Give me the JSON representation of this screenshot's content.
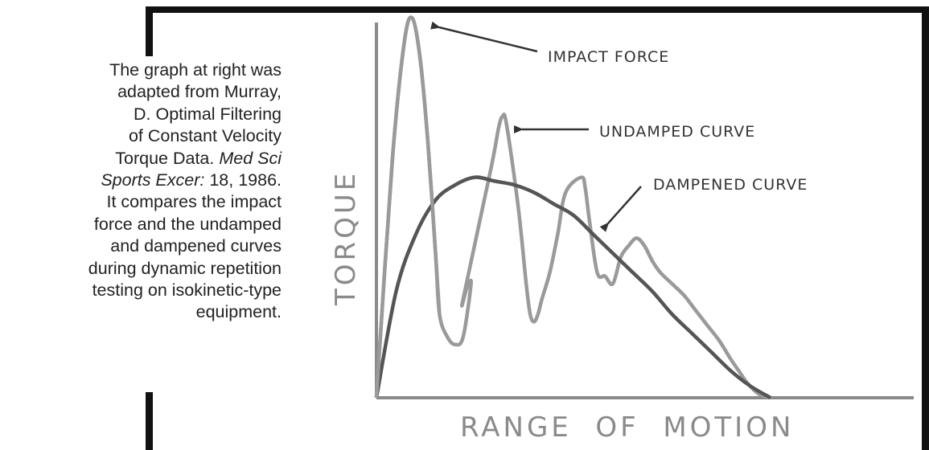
{
  "caption": {
    "line1": "The graph at right was",
    "line2": "adapted from Murray,",
    "line3": "D. Optimal Filtering",
    "line4": "of Constant Velocity",
    "line5_pre": "Torque Data. ",
    "line5_ital": "Med Sci",
    "line6_ital": "Sports Excer:",
    "line6_post": " 18, 1986.",
    "line7": "It compares the impact",
    "line8": "force and the undamped",
    "line9": "and dampened curves",
    "line10": "during dynamic repetition",
    "line11": "testing on isokinetic-type",
    "line12": "equipment."
  },
  "colors": {
    "frame": "#111111",
    "axis": "#8a8a8a",
    "undamped": "#9a9a9a",
    "dampened": "#555555",
    "arrow": "#333333"
  },
  "chart_data": {
    "type": "line",
    "title": "",
    "xlabel": "RANGE  OF  MOTION",
    "ylabel": "TORQUE",
    "xlim": [
      0,
      100
    ],
    "ylim": [
      0,
      100
    ],
    "ticks": "none",
    "grid": false,
    "series": [
      {
        "name": "UNDAMPED CURVE",
        "x": [
          0,
          4,
          7,
          9,
          11,
          13,
          15,
          16,
          18,
          20,
          22,
          24,
          23,
          22,
          29,
          31,
          32,
          33,
          36,
          38,
          39,
          40,
          41,
          42,
          44,
          46,
          48,
          52,
          53,
          54,
          56,
          58,
          60,
          62,
          64,
          66,
          68,
          70,
          72,
          75,
          78,
          81,
          84,
          87,
          90,
          92,
          94,
          97,
          100
        ],
        "y": [
          0,
          62,
          93,
          100,
          90,
          68,
          38,
          22,
          16,
          14,
          16,
          30,
          29,
          26,
          60,
          71,
          74,
          72,
          50,
          30,
          22,
          20,
          22,
          26,
          33,
          43,
          54,
          58,
          55,
          47,
          33,
          32,
          30,
          37,
          40,
          42,
          40,
          36,
          33,
          30,
          27,
          23,
          19,
          15,
          10,
          7,
          4,
          1,
          0
        ]
      },
      {
        "name": "DAMPENED CURVE",
        "x": [
          0,
          5,
          10,
          15,
          20,
          25,
          30,
          35,
          40,
          45,
          50,
          55,
          60,
          65,
          70,
          75,
          80,
          85,
          90,
          95,
          100
        ],
        "y": [
          0,
          28,
          43,
          52,
          56,
          58,
          57,
          56,
          54,
          51,
          48,
          43,
          38,
          33,
          28,
          22,
          17,
          12,
          7,
          3,
          0
        ]
      },
      {
        "name": "IMPACT FORCE",
        "x": [
          0,
          4,
          7,
          9,
          11,
          13,
          15,
          16
        ],
        "y": [
          0,
          62,
          93,
          100,
          90,
          68,
          38,
          22
        ]
      }
    ],
    "annotations": [
      {
        "text": "IMPACT FORCE",
        "target_series": "IMPACT FORCE"
      },
      {
        "text": "UNDAMPED CURVE",
        "target_series": "UNDAMPED CURVE"
      },
      {
        "text": "DAMPENED CURVE",
        "target_series": "DAMPENED CURVE"
      }
    ]
  }
}
